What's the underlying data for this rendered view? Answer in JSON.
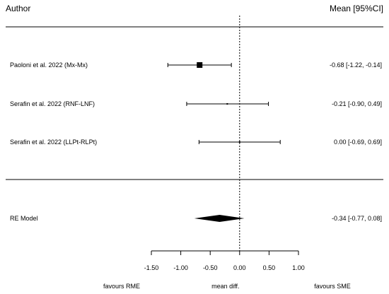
{
  "header": {
    "author_label": "Author",
    "mean_label": "Mean [95%CI]"
  },
  "chart_data": {
    "type": "forest",
    "title": "",
    "xlabel": "mean diff.",
    "left_note": "favours RME",
    "right_note": "favours SME",
    "xlim": [
      -1.5,
      1.0
    ],
    "xticks": [
      -1.5,
      -1.0,
      -0.5,
      0.0,
      0.5,
      1.0
    ],
    "xtick_labels": [
      "-1.50",
      "-1.00",
      "-0.50",
      "0.00",
      "0.50",
      "1.00"
    ],
    "reference_line": 0.0,
    "studies": [
      {
        "label": "Paoloni et al. 2022 (Mx-Mx)",
        "mean": -0.68,
        "lower": -1.22,
        "upper": -0.14,
        "ci_text": "-0.68 [-1.22, -0.14]",
        "weight": "large"
      },
      {
        "label": "Serafin et al. 2022 (RNF-LNF)",
        "mean": -0.21,
        "lower": -0.9,
        "upper": 0.49,
        "ci_text": "-0.21 [-0.90,  0.49]",
        "weight": "small"
      },
      {
        "label": "Serafin et al. 2022 (LLPt-RLPt)",
        "mean": 0.0,
        "lower": -0.69,
        "upper": 0.69,
        "ci_text": "0.00 [-0.69,  0.69]",
        "weight": "small"
      }
    ],
    "summary": {
      "label": "RE Model",
      "mean": -0.34,
      "lower": -0.77,
      "upper": 0.08,
      "ci_text": "-0.34 [-0.77,  0.08]"
    }
  }
}
